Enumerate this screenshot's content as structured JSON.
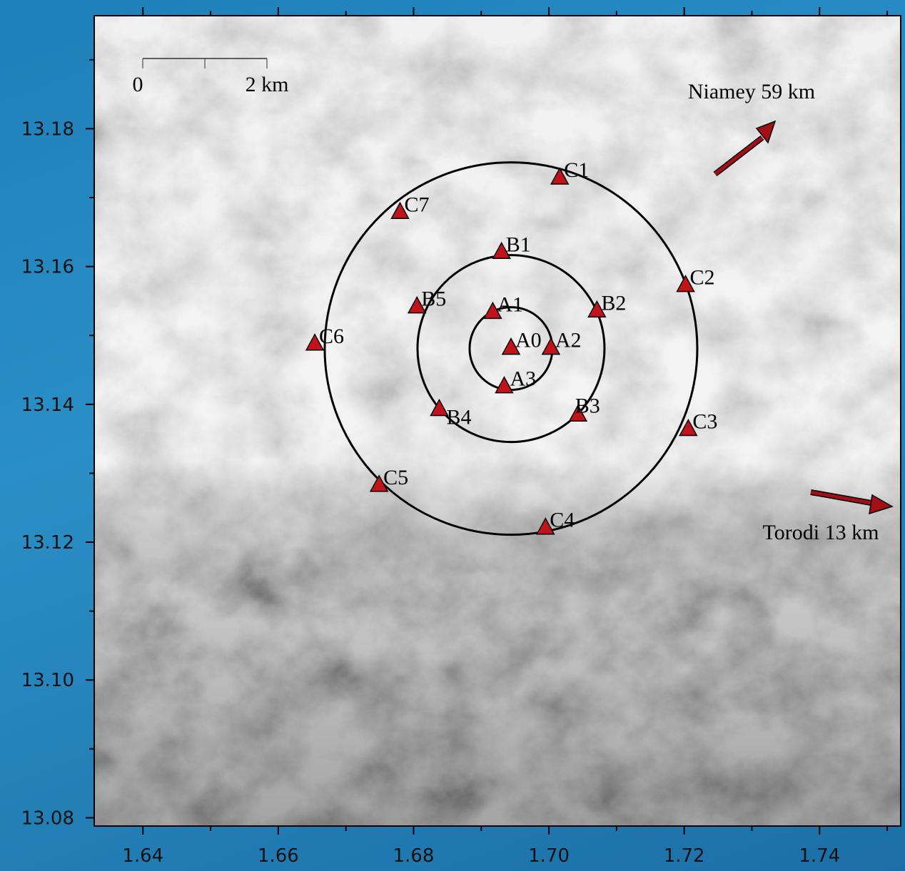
{
  "chart_data": {
    "type": "map",
    "x": [
      1.6944,
      1.6917,
      1.7003,
      1.6934,
      1.693,
      1.7071,
      1.7043,
      1.6838,
      1.6805,
      1.7016,
      1.7202,
      1.7206,
      1.6995,
      1.6749,
      1.6654,
      1.678
    ],
    "values": [
      13.1481,
      13.1533,
      13.1481,
      13.1425,
      13.162,
      13.1535,
      13.1384,
      13.1392,
      13.1541,
      13.1728,
      13.1572,
      13.1363,
      13.122,
      13.1282,
      13.1487,
      13.1678
    ],
    "point_labels": [
      "A0",
      "A1",
      "A2",
      "A3",
      "B1",
      "B2",
      "B3",
      "B4",
      "B5",
      "C1",
      "C2",
      "C3",
      "C4",
      "C5",
      "C6",
      "C7"
    ],
    "color": "#c0141a",
    "xlim": [
      1.6328,
      1.752
    ],
    "ylim": [
      13.0788,
      13.1964
    ],
    "xticks": [
      1.64,
      1.66,
      1.68,
      {
        "value": 1.7,
        "label": "1.70"
      },
      1.72,
      1.74
    ],
    "yticks": [
      {
        "value": 13.08,
        "label": "13.08"
      },
      {
        "value": 13.1,
        "label": "13.10"
      },
      13.12,
      13.14,
      13.16,
      13.18
    ],
    "xminorticks": [
      1.65,
      1.67,
      1.69,
      1.71,
      1.73,
      1.75
    ],
    "yminorticks": [
      13.09,
      13.11,
      13.13,
      13.15,
      13.17,
      13.19
    ],
    "scale_bar": {
      "start_label": "0",
      "end_label": "2 km"
    },
    "annotations": [
      "Niamey 59 km",
      "Torodi 13 km"
    ]
  }
}
